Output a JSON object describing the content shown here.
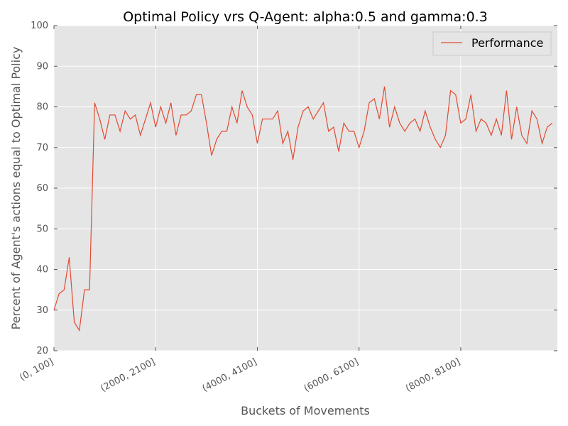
{
  "chart_data": {
    "type": "line",
    "title": "Optimal Policy vrs Q-Agent: alpha:0.5 and gamma:0.3",
    "xlabel": "Buckets of Movements",
    "ylabel": "Percent of Agent's actions equal to Optimal Policy",
    "ylim": [
      20,
      100
    ],
    "yticks": [
      20,
      30,
      40,
      50,
      60,
      70,
      80,
      90,
      100
    ],
    "xlim": [
      0,
      99
    ],
    "xticks": [
      {
        "index": 0,
        "label": "(0, 100]"
      },
      {
        "index": 20,
        "label": "(2000, 2100]"
      },
      {
        "index": 40,
        "label": "(4000, 4100]"
      },
      {
        "index": 60,
        "label": "(6000, 6100]"
      },
      {
        "index": 80,
        "label": "(8000, 8100]"
      }
    ],
    "grid": true,
    "legend_position": "top-right",
    "colors": {
      "line": "#e24a33",
      "plot_bg": "#e5e5e5",
      "grid": "#ffffff"
    },
    "series": [
      {
        "name": "Performance",
        "values": [
          30,
          34,
          35,
          43,
          27,
          25,
          35,
          35,
          81,
          77,
          72,
          78,
          78,
          74,
          79,
          77,
          78,
          73,
          77,
          81,
          75,
          80,
          76,
          81,
          73,
          78,
          78,
          79,
          83,
          83,
          76,
          68,
          72,
          74,
          74,
          80,
          76,
          84,
          80,
          78,
          71,
          77,
          77,
          77,
          79,
          71,
          74,
          67,
          75,
          79,
          80,
          77,
          79,
          81,
          74,
          75,
          69,
          76,
          74,
          74,
          70,
          74,
          81,
          82,
          77,
          85,
          75,
          80,
          76,
          74,
          76,
          77,
          74,
          79,
          75,
          72,
          70,
          73,
          84,
          83,
          76,
          77,
          83,
          74,
          77,
          76,
          73,
          77,
          73,
          84,
          72,
          80,
          73,
          71,
          79,
          77,
          71,
          75,
          76
        ]
      }
    ]
  }
}
